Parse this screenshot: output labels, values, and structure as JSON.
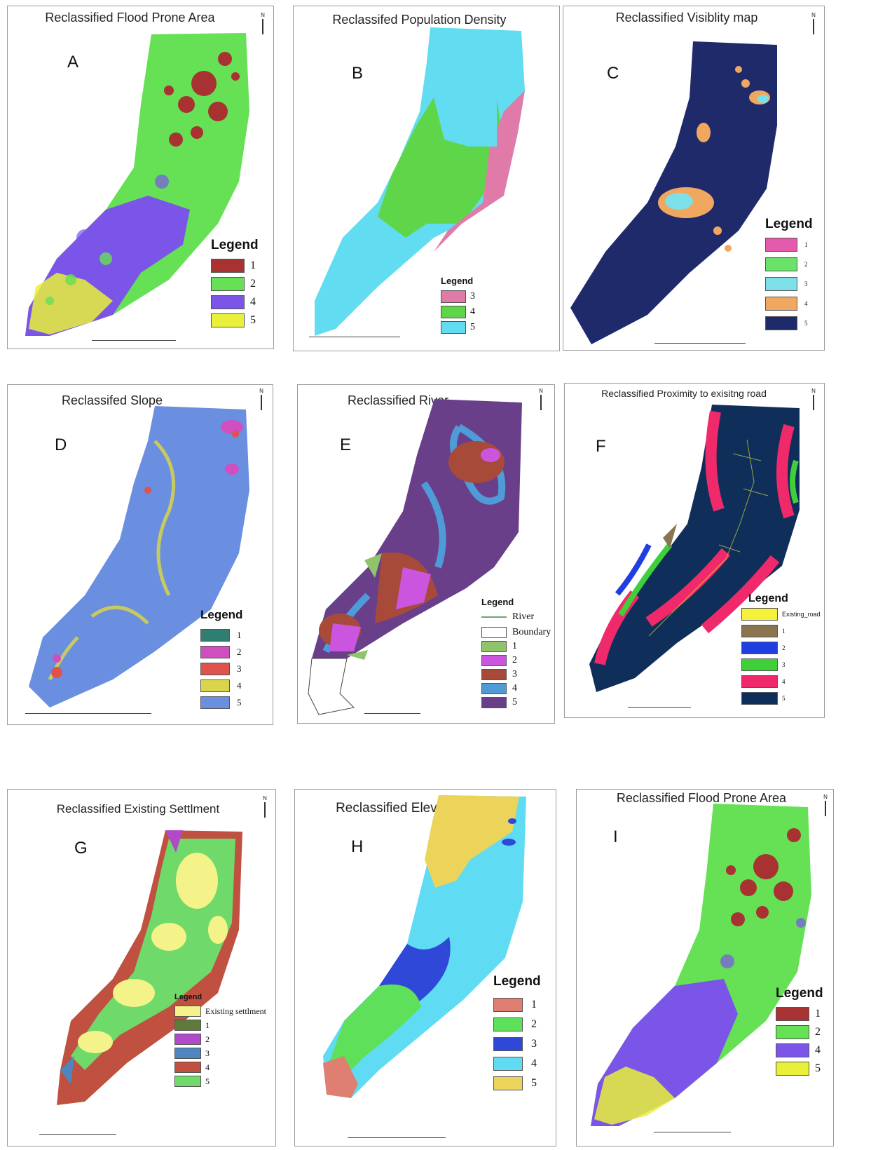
{
  "panels": [
    {
      "id": "A",
      "title": "Reclassified Flood Prone Area",
      "legend_title": "Legend",
      "legend": [
        {
          "label": "1",
          "color": "#a83232"
        },
        {
          "label": "2",
          "color": "#66e055"
        },
        {
          "label": "4",
          "color": "#7a55e8"
        },
        {
          "label": "5",
          "color": "#e8f03a"
        }
      ]
    },
    {
      "id": "B",
      "title": "Reclassifed Population Density",
      "legend_title": "Legend",
      "legend": [
        {
          "label": "3",
          "color": "#e07aa8"
        },
        {
          "label": "4",
          "color": "#5fd64a"
        },
        {
          "label": "5",
          "color": "#62dcf0"
        }
      ]
    },
    {
      "id": "C",
      "title": "Reclassified Visiblity map",
      "legend_title": "Legend",
      "legend": [
        {
          "label": "1",
          "color": "#e45aac"
        },
        {
          "label": "2",
          "color": "#6ae26a"
        },
        {
          "label": "3",
          "color": "#7de0e8"
        },
        {
          "label": "4",
          "color": "#f0a860"
        },
        {
          "label": "5",
          "color": "#1f2a6b"
        }
      ]
    },
    {
      "id": "D",
      "title": "Reclassifed Slope",
      "legend_title": "Legend",
      "legend": [
        {
          "label": "1",
          "color": "#2e7f72"
        },
        {
          "label": "2",
          "color": "#cf4fc0"
        },
        {
          "label": "3",
          "color": "#e0524c"
        },
        {
          "label": "4",
          "color": "#d8d548"
        },
        {
          "label": "5",
          "color": "#6a8fe0"
        }
      ]
    },
    {
      "id": "E",
      "title": "Reclassified River",
      "legend_title": "Legend",
      "legend": [
        {
          "label": "River",
          "color": "line"
        },
        {
          "label": "Boundary",
          "color": "#ffffff"
        },
        {
          "label": "1",
          "color": "#8fc46a"
        },
        {
          "label": "2",
          "color": "#cc55e0"
        },
        {
          "label": "3",
          "color": "#a84a3a"
        },
        {
          "label": "4",
          "color": "#4e9bd8"
        },
        {
          "label": "5",
          "color": "#6a3f8a"
        }
      ]
    },
    {
      "id": "F",
      "title": "Reclassified Proximity to exisitng road",
      "legend_title": "Legend",
      "legend": [
        {
          "label": "Existing_road",
          "color": "#f5f03a"
        },
        {
          "label": "1",
          "color": "#8a7550"
        },
        {
          "label": "2",
          "color": "#1f3fe0"
        },
        {
          "label": "3",
          "color": "#3fcf3a"
        },
        {
          "label": "4",
          "color": "#f02a6a"
        },
        {
          "label": "5",
          "color": "#0f2f5a"
        }
      ]
    },
    {
      "id": "G",
      "title": "Reclassified Existing Settlment",
      "legend_title": "Legend",
      "legend": [
        {
          "label": "Existing settlment",
          "color": "#f3f38a"
        },
        {
          "label": "1",
          "color": "#5f7a3a"
        },
        {
          "label": "2",
          "color": "#b04ac8"
        },
        {
          "label": "3",
          "color": "#4f86c0"
        },
        {
          "label": "4",
          "color": "#c0503f"
        },
        {
          "label": "5",
          "color": "#6fd96a"
        }
      ]
    },
    {
      "id": "H",
      "title": "Reclassified Elevation",
      "legend_title": "Legend",
      "legend": [
        {
          "label": "1",
          "color": "#df7f72"
        },
        {
          "label": "2",
          "color": "#5fe05a"
        },
        {
          "label": "3",
          "color": "#3048d8"
        },
        {
          "label": "4",
          "color": "#5fdcf3"
        },
        {
          "label": "5",
          "color": "#ecd45a"
        }
      ]
    },
    {
      "id": "I",
      "title": "Reclassified Flood Prone Area",
      "legend_title": "Legend",
      "legend": [
        {
          "label": "1",
          "color": "#a83232"
        },
        {
          "label": "2",
          "color": "#66e055"
        },
        {
          "label": "4",
          "color": "#7a55e8"
        },
        {
          "label": "5",
          "color": "#e8f03a"
        }
      ]
    }
  ],
  "north_label": "N"
}
